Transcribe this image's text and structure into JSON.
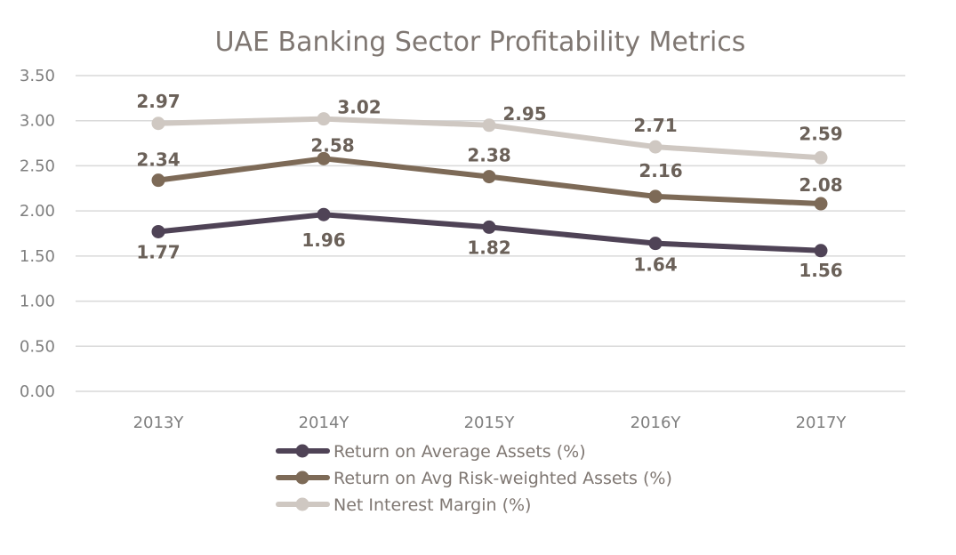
{
  "chart_data": {
    "type": "line",
    "title": "UAE Banking Sector Profitability Metrics",
    "categories": [
      "2013Y",
      "2014Y",
      "2015Y",
      "2016Y",
      "2017Y"
    ],
    "ylim": [
      0,
      3.5
    ],
    "yticks": [
      "0.00",
      "0.50",
      "1.00",
      "1.50",
      "2.00",
      "2.50",
      "3.00",
      "3.50"
    ],
    "grid": true,
    "legend_position": "bottom",
    "series": [
      {
        "name": "Return on Average Assets (%)",
        "values": [
          1.77,
          1.96,
          1.82,
          1.64,
          1.56
        ],
        "labels": [
          "1.77",
          "1.96",
          "1.82",
          "1.64",
          "1.56"
        ],
        "color": "#4f4356"
      },
      {
        "name": "Return on Avg Risk-weighted Assets (%)",
        "values": [
          2.34,
          2.58,
          2.38,
          2.16,
          2.08
        ],
        "labels": [
          "2.34",
          "2.58",
          "2.38",
          "2.16",
          "2.08"
        ],
        "color": "#7d6a57"
      },
      {
        "name": "Net Interest Margin (%)",
        "values": [
          2.97,
          3.02,
          2.95,
          2.71,
          2.59
        ],
        "labels": [
          "2.97",
          "3.02",
          "2.95",
          "2.71",
          "2.59"
        ],
        "color": "#cfc8c2"
      }
    ]
  }
}
